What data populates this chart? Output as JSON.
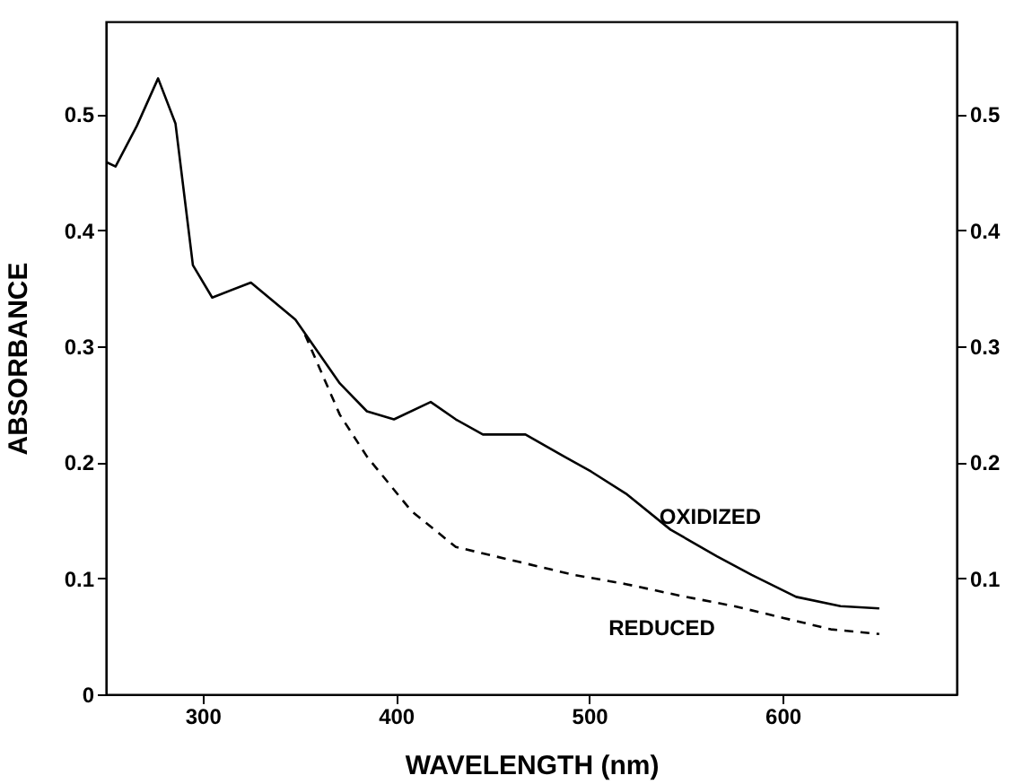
{
  "chart_data": {
    "type": "line",
    "xlabel": "WAVELENGTH (nm)",
    "ylabel": "ABSORBANCE",
    "xlim": [
      250,
      690
    ],
    "xticks": [
      300,
      400,
      500,
      600
    ],
    "ylim": [
      0,
      0.58
    ],
    "yticks": [
      0,
      0.1,
      0.2,
      0.3,
      0.4,
      0.5
    ],
    "y2lim": [
      0,
      0.58
    ],
    "y2ticks": [
      0.1,
      0.2,
      0.3,
      0.4,
      0.5
    ],
    "marker": "none",
    "series": [
      {
        "color": "#000000",
        "line_style": "solid",
        "x": [
          250,
          255,
          266,
          277,
          286,
          295,
          305,
          325,
          348,
          371,
          385,
          399,
          418,
          431,
          445,
          467,
          487,
          501,
          519,
          542,
          566,
          584,
          607,
          630,
          650
        ],
        "values": [
          0.459,
          0.455,
          0.49,
          0.531,
          0.492,
          0.37,
          0.342,
          0.355,
          0.323,
          0.268,
          0.244,
          0.237,
          0.252,
          0.237,
          0.224,
          0.224,
          0.205,
          0.192,
          0.173,
          0.142,
          0.119,
          0.103,
          0.084,
          0.076,
          0.074
        ]
      },
      {
        "color": "#000000",
        "line_style": "dashed",
        "x": [
          353,
          371,
          385,
          408,
          431,
          464,
          492,
          519,
          547,
          575,
          600,
          625,
          650
        ],
        "values": [
          0.31,
          0.241,
          0.205,
          0.158,
          0.127,
          0.114,
          0.103,
          0.095,
          0.085,
          0.076,
          0.066,
          0.056,
          0.052
        ]
      }
    ],
    "annotations": [
      {
        "text": "OXIDIZED",
        "x": 570,
        "y": 0.125
      },
      {
        "text": "REDUCED",
        "x": 545,
        "y": 0.085
      }
    ]
  }
}
